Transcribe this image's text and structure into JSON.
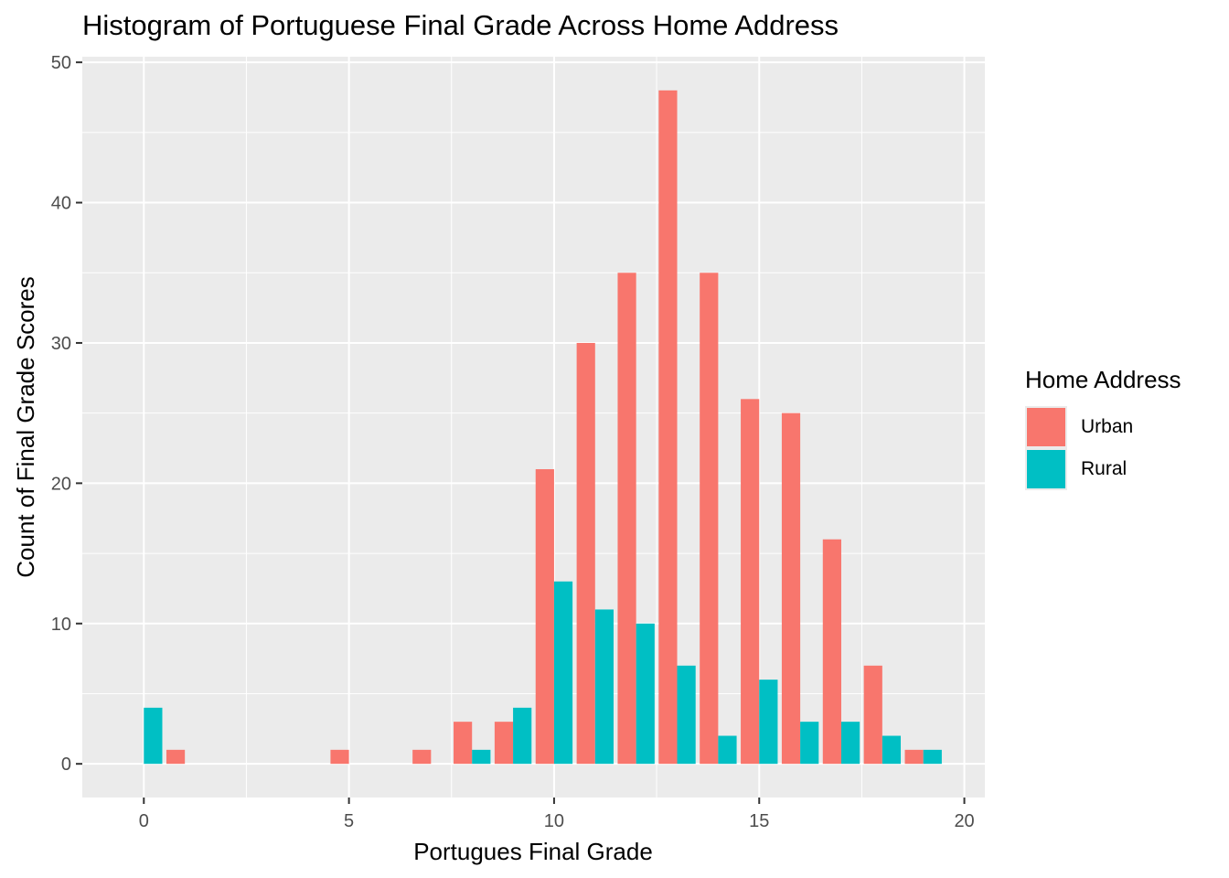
{
  "chart_data": {
    "type": "bar",
    "title": "Histogram of Portuguese Final Grade Across Home Address",
    "xlabel": "Portugues Final Grade",
    "ylabel": "Count of Final Grade Scores",
    "xlim": [
      -1.5,
      20.5
    ],
    "ylim": [
      -2.4,
      50.4
    ],
    "x_ticks": [
      0,
      5,
      10,
      15,
      20
    ],
    "y_ticks": [
      0,
      10,
      20,
      30,
      40,
      50
    ],
    "grid": true,
    "legend_title": "Home Address",
    "legend_position": "right",
    "x": [
      0,
      1,
      5,
      7,
      8,
      9,
      10,
      11,
      12,
      13,
      14,
      15,
      16,
      17,
      18,
      19
    ],
    "series": [
      {
        "name": "Urban",
        "color": "#F8766D",
        "values": [
          0,
          1,
          1,
          1,
          3,
          3,
          21,
          30,
          35,
          48,
          35,
          26,
          25,
          16,
          7,
          1
        ]
      },
      {
        "name": "Rural",
        "color": "#00BFC4",
        "values": [
          4,
          0,
          0,
          0,
          1,
          4,
          13,
          11,
          10,
          7,
          2,
          6,
          3,
          3,
          2,
          1
        ]
      }
    ]
  }
}
